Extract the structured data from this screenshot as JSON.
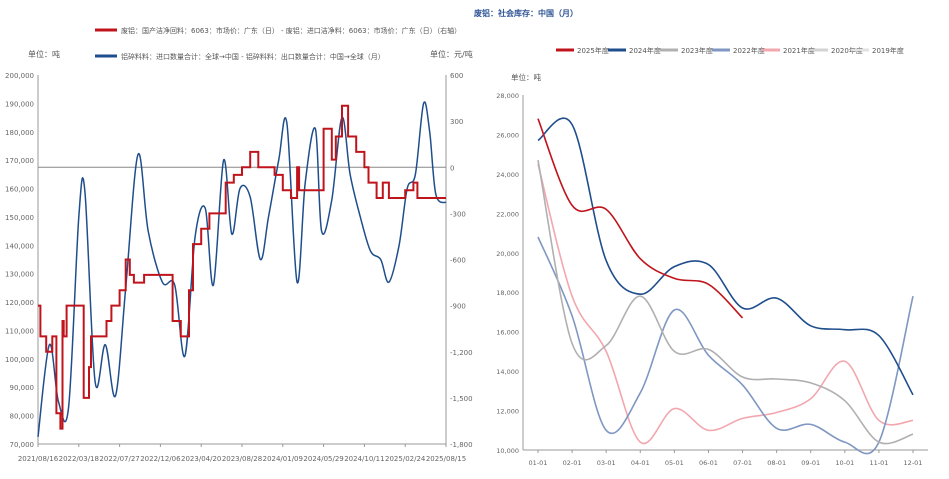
{
  "chart_data": [
    {
      "type": "line",
      "title": "",
      "legend": {
        "position": "top",
        "entries": [
          "废铝：国产洁净回料：6063：市场价：广东（日） - 废铝：进口洁净料：6063：市场价：广东（日）（右轴）",
          "铝碎料料：进口数量合计：全球→中国 - 铝碎料料：出口数量合计：中国→全球（月）"
        ]
      },
      "left_unit": "单位：吨",
      "right_unit": "单位：元/吨",
      "y_ticks": [
        "200,000",
        "190,000",
        "180,000",
        "170,000",
        "160,000",
        "150,000",
        "140,000",
        "130,000",
        "120,000",
        "110,000",
        "100,000",
        "90,000",
        "80,000",
        "70,000"
      ],
      "ylim": [
        70000,
        200000
      ],
      "y2_ticks": [
        "600",
        "300",
        "0",
        "-300",
        "-600",
        "-900",
        "-1,200",
        "-1,500",
        "-1,800"
      ],
      "y2lim": [
        -1800,
        600
      ],
      "x_ticks": [
        "2021/08/16",
        "2022/03/18",
        "2022/07/27",
        "2022/12/06",
        "2023/04/20",
        "2023/08/28",
        "2024/01/09",
        "2024/05/29",
        "2024/10/11",
        "2025/02/24",
        "2025/08/15"
      ],
      "series": [
        {
          "name": "废铝：国产洁净回料：6063：市场价：广东（日） - 废铝：进口洁净料：6063：市场价：广东（日）（右轴）",
          "axis": "right",
          "color": "#C0141C",
          "style": "step",
          "points": [
            [
              0.0,
              -900
            ],
            [
              0.006,
              -900
            ],
            [
              0.006,
              -1100
            ],
            [
              0.02,
              -1100
            ],
            [
              0.02,
              -1200
            ],
            [
              0.035,
              -1200
            ],
            [
              0.035,
              -1100
            ],
            [
              0.045,
              -1100
            ],
            [
              0.045,
              -1600
            ],
            [
              0.055,
              -1600
            ],
            [
              0.055,
              -1700
            ],
            [
              0.06,
              -1700
            ],
            [
              0.06,
              -1000
            ],
            [
              0.063,
              -1000
            ],
            [
              0.063,
              -1100
            ],
            [
              0.07,
              -1100
            ],
            [
              0.07,
              -900
            ],
            [
              0.112,
              -900
            ],
            [
              0.112,
              -1500
            ],
            [
              0.125,
              -1500
            ],
            [
              0.125,
              -1300
            ],
            [
              0.13,
              -1300
            ],
            [
              0.13,
              -1100
            ],
            [
              0.168,
              -1100
            ],
            [
              0.168,
              -1000
            ],
            [
              0.18,
              -1000
            ],
            [
              0.18,
              -900
            ],
            [
              0.2,
              -900
            ],
            [
              0.2,
              -800
            ],
            [
              0.215,
              -800
            ],
            [
              0.215,
              -600
            ],
            [
              0.225,
              -600
            ],
            [
              0.225,
              -700
            ],
            [
              0.235,
              -700
            ],
            [
              0.235,
              -750
            ],
            [
              0.26,
              -750
            ],
            [
              0.26,
              -700
            ],
            [
              0.33,
              -700
            ],
            [
              0.33,
              -1000
            ],
            [
              0.35,
              -1000
            ],
            [
              0.35,
              -1100
            ],
            [
              0.37,
              -1100
            ],
            [
              0.37,
              -800
            ],
            [
              0.38,
              -800
            ],
            [
              0.38,
              -500
            ],
            [
              0.4,
              -500
            ],
            [
              0.4,
              -400
            ],
            [
              0.42,
              -400
            ],
            [
              0.42,
              -300
            ],
            [
              0.46,
              -300
            ],
            [
              0.46,
              -100
            ],
            [
              0.48,
              -100
            ],
            [
              0.48,
              -50
            ],
            [
              0.5,
              -50
            ],
            [
              0.5,
              0
            ],
            [
              0.52,
              0
            ],
            [
              0.52,
              100
            ],
            [
              0.54,
              100
            ],
            [
              0.54,
              0
            ],
            [
              0.55,
              0
            ],
            [
              0.55,
              0
            ],
            [
              0.58,
              0
            ],
            [
              0.58,
              -50
            ],
            [
              0.6,
              -50
            ],
            [
              0.6,
              -150
            ],
            [
              0.62,
              -150
            ],
            [
              0.62,
              -200
            ],
            [
              0.635,
              -200
            ],
            [
              0.635,
              0
            ],
            [
              0.64,
              0
            ],
            [
              0.64,
              -150
            ],
            [
              0.7,
              -150
            ],
            [
              0.7,
              250
            ],
            [
              0.72,
              250
            ],
            [
              0.72,
              50
            ],
            [
              0.73,
              50
            ],
            [
              0.73,
              200
            ],
            [
              0.745,
              200
            ],
            [
              0.745,
              400
            ],
            [
              0.76,
              400
            ],
            [
              0.76,
              200
            ],
            [
              0.78,
              200
            ],
            [
              0.78,
              100
            ],
            [
              0.8,
              100
            ],
            [
              0.8,
              0
            ],
            [
              0.81,
              0
            ],
            [
              0.81,
              -100
            ],
            [
              0.83,
              -100
            ],
            [
              0.83,
              -200
            ],
            [
              0.845,
              -200
            ],
            [
              0.845,
              -100
            ],
            [
              0.86,
              -100
            ],
            [
              0.86,
              -200
            ],
            [
              0.9,
              -200
            ],
            [
              0.9,
              -150
            ],
            [
              0.92,
              -150
            ],
            [
              0.92,
              -100
            ],
            [
              0.93,
              -100
            ],
            [
              0.93,
              -200
            ],
            [
              1.0,
              -200
            ]
          ]
        },
        {
          "name": "铝碎料料：进口数量合计：全球→中国 - 铝碎料料：出口数量合计：中国→全球（月）",
          "axis": "left",
          "color": "#1F4E8C",
          "style": "smooth",
          "points": [
            [
              0.0,
              72500
            ],
            [
              0.028,
              105000
            ],
            [
              0.05,
              85000
            ],
            [
              0.075,
              83000
            ],
            [
              0.1,
              150000
            ],
            [
              0.115,
              159000
            ],
            [
              0.14,
              92000
            ],
            [
              0.165,
              105000
            ],
            [
              0.19,
              87000
            ],
            [
              0.215,
              125000
            ],
            [
              0.245,
              172000
            ],
            [
              0.27,
              145000
            ],
            [
              0.305,
              127000
            ],
            [
              0.335,
              126000
            ],
            [
              0.36,
              101000
            ],
            [
              0.385,
              143000
            ],
            [
              0.41,
              153000
            ],
            [
              0.43,
              126000
            ],
            [
              0.455,
              170000
            ],
            [
              0.475,
              144000
            ],
            [
              0.495,
              160000
            ],
            [
              0.52,
              157000
            ],
            [
              0.545,
              135000
            ],
            [
              0.565,
              150000
            ],
            [
              0.59,
              170000
            ],
            [
              0.61,
              183000
            ],
            [
              0.635,
              127000
            ],
            [
              0.655,
              162000
            ],
            [
              0.68,
              181000
            ],
            [
              0.695,
              145000
            ],
            [
              0.72,
              156000
            ],
            [
              0.745,
              185000
            ],
            [
              0.765,
              165000
            ],
            [
              0.79,
              150000
            ],
            [
              0.815,
              138000
            ],
            [
              0.84,
              135000
            ],
            [
              0.86,
              127000
            ],
            [
              0.885,
              140000
            ],
            [
              0.905,
              160000
            ],
            [
              0.925,
              165000
            ],
            [
              0.945,
              190000
            ],
            [
              0.96,
              180000
            ],
            [
              0.975,
              158000
            ],
            [
              1.0,
              155000
            ]
          ]
        }
      ]
    },
    {
      "type": "line",
      "title": "废铝：社会库存：中国（月）",
      "ylabel": "单位：吨",
      "ylim": [
        10000,
        28000
      ],
      "y_ticks": [
        "28,000",
        "26,000",
        "24,000",
        "22,000",
        "20,000",
        "18,000",
        "16,000",
        "14,000",
        "12,000",
        "10,000"
      ],
      "categories": [
        "01-01",
        "02-01",
        "03-01",
        "04-01",
        "05-01",
        "06-01",
        "07-01",
        "08-01",
        "09-01",
        "10-01",
        "11-01",
        "12-01"
      ],
      "series": [
        {
          "name": "2025年度",
          "color": "#C0141C",
          "values": [
            26800,
            22400,
            22200,
            19700,
            18700,
            18400,
            16700,
            null,
            null,
            null,
            null,
            null
          ]
        },
        {
          "name": "2024年度",
          "color": "#1F4E8C",
          "values": [
            25700,
            26500,
            19600,
            17900,
            19300,
            19400,
            17200,
            17700,
            16300,
            16100,
            15800,
            12800
          ]
        },
        {
          "name": "2023年度",
          "color": "#B0B0B0",
          "values": [
            24700,
            15400,
            15300,
            17800,
            15000,
            15100,
            13700,
            13600,
            13400,
            12500,
            10400,
            10800
          ]
        },
        {
          "name": "2022年度",
          "color": "#7F97C2",
          "values": [
            20800,
            16800,
            11000,
            12900,
            17100,
            14800,
            13300,
            11100,
            11300,
            10400,
            10400,
            17800
          ]
        },
        {
          "name": "2021年度",
          "color": "#F2A7AF",
          "values": [
            24500,
            17800,
            15000,
            10400,
            12100,
            11000,
            11600,
            11900,
            12600,
            14500,
            11500,
            11500
          ]
        },
        {
          "name": "2020年度",
          "color": "#D3D3D3",
          "values": [
            null,
            null,
            null,
            null,
            null,
            null,
            null,
            null,
            null,
            null,
            null,
            null
          ]
        },
        {
          "name": "2019年度",
          "color": "#E2E2E2",
          "values": [
            null,
            null,
            null,
            null,
            null,
            null,
            null,
            null,
            null,
            null,
            null,
            null
          ]
        }
      ]
    }
  ]
}
